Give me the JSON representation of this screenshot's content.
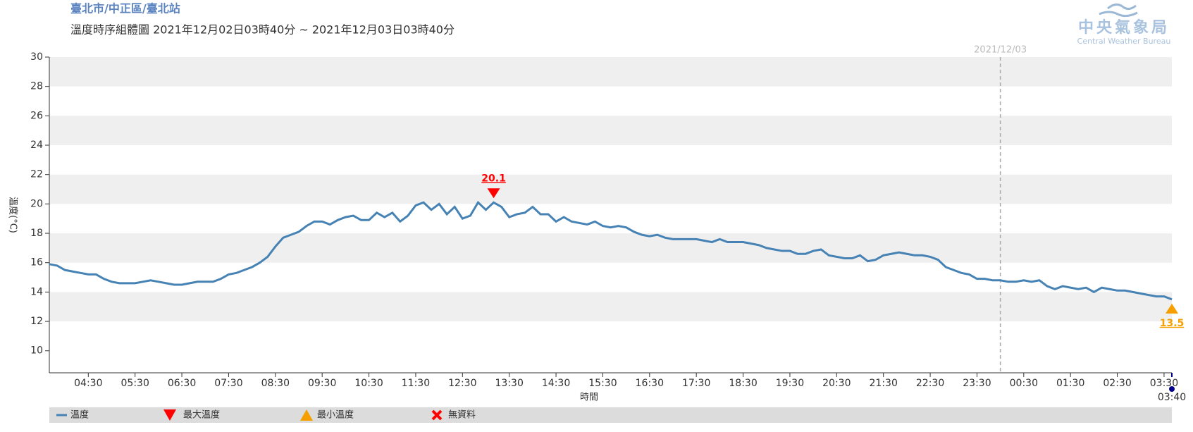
{
  "chart_data": {
    "type": "line",
    "location": "臺北市/中正區/臺北站",
    "title": "溫度時序組體圖 2021年12月02日03時40分 ~ 2021年12月03日03時40分",
    "logo_title": "中央氣象局",
    "logo_subtitle": "Central Weather Bureau",
    "ylabel": "溫度(°C)",
    "xlabel": "時間",
    "ylim": [
      8.5,
      30
    ],
    "yticks": [
      10,
      12,
      14,
      16,
      18,
      20,
      22,
      24,
      26,
      28,
      30
    ],
    "bands": true,
    "xlim": [
      "2021-12-02T03:40",
      "2021-12-03T03:40"
    ],
    "xticks": [
      {
        "value": "2021-12-02T04:30",
        "label": "04:30"
      },
      {
        "value": "2021-12-02T05:30",
        "label": "05:30"
      },
      {
        "value": "2021-12-02T06:30",
        "label": "06:30"
      },
      {
        "value": "2021-12-02T07:30",
        "label": "07:30"
      },
      {
        "value": "2021-12-02T08:30",
        "label": "08:30"
      },
      {
        "value": "2021-12-02T09:30",
        "label": "09:30"
      },
      {
        "value": "2021-12-02T10:30",
        "label": "10:30"
      },
      {
        "value": "2021-12-02T11:30",
        "label": "11:30"
      },
      {
        "value": "2021-12-02T12:30",
        "label": "12:30"
      },
      {
        "value": "2021-12-02T13:30",
        "label": "13:30"
      },
      {
        "value": "2021-12-02T14:30",
        "label": "14:30"
      },
      {
        "value": "2021-12-02T15:30",
        "label": "15:30"
      },
      {
        "value": "2021-12-02T16:30",
        "label": "16:30"
      },
      {
        "value": "2021-12-02T17:30",
        "label": "17:30"
      },
      {
        "value": "2021-12-02T18:30",
        "label": "18:30"
      },
      {
        "value": "2021-12-02T19:30",
        "label": "19:30"
      },
      {
        "value": "2021-12-02T20:30",
        "label": "20:30"
      },
      {
        "value": "2021-12-02T21:30",
        "label": "21:30"
      },
      {
        "value": "2021-12-02T22:30",
        "label": "22:30"
      },
      {
        "value": "2021-12-02T23:30",
        "label": "23:30"
      },
      {
        "value": "2021-12-03T00:30",
        "label": "00:30"
      },
      {
        "value": "2021-12-03T01:30",
        "label": "01:30"
      },
      {
        "value": "2021-12-03T02:30",
        "label": "02:30"
      },
      {
        "value": "2021-12-03T03:30",
        "label": "03:30"
      },
      {
        "value": "2021-12-03T03:40",
        "label": "03:40"
      }
    ],
    "day_line": {
      "x": "2021-12-03T00:00",
      "label": "2021/12/03"
    },
    "x": [
      "2021-12-02T03:40",
      "2021-12-02T03:50",
      "2021-12-02T04:00",
      "2021-12-02T04:10",
      "2021-12-02T04:20",
      "2021-12-02T04:30",
      "2021-12-02T04:40",
      "2021-12-02T04:50",
      "2021-12-02T05:00",
      "2021-12-02T05:10",
      "2021-12-02T05:20",
      "2021-12-02T05:30",
      "2021-12-02T05:40",
      "2021-12-02T05:50",
      "2021-12-02T06:00",
      "2021-12-02T06:10",
      "2021-12-02T06:20",
      "2021-12-02T06:30",
      "2021-12-02T06:40",
      "2021-12-02T06:50",
      "2021-12-02T07:00",
      "2021-12-02T07:10",
      "2021-12-02T07:20",
      "2021-12-02T07:30",
      "2021-12-02T07:40",
      "2021-12-02T07:50",
      "2021-12-02T08:00",
      "2021-12-02T08:10",
      "2021-12-02T08:20",
      "2021-12-02T08:30",
      "2021-12-02T08:40",
      "2021-12-02T08:50",
      "2021-12-02T09:00",
      "2021-12-02T09:10",
      "2021-12-02T09:20",
      "2021-12-02T09:30",
      "2021-12-02T09:40",
      "2021-12-02T09:50",
      "2021-12-02T10:00",
      "2021-12-02T10:10",
      "2021-12-02T10:20",
      "2021-12-02T10:30",
      "2021-12-02T10:40",
      "2021-12-02T10:50",
      "2021-12-02T11:00",
      "2021-12-02T11:10",
      "2021-12-02T11:20",
      "2021-12-02T11:30",
      "2021-12-02T11:40",
      "2021-12-02T11:50",
      "2021-12-02T12:00",
      "2021-12-02T12:10",
      "2021-12-02T12:20",
      "2021-12-02T12:30",
      "2021-12-02T12:40",
      "2021-12-02T12:50",
      "2021-12-02T13:00",
      "2021-12-02T13:10",
      "2021-12-02T13:20",
      "2021-12-02T13:30",
      "2021-12-02T13:40",
      "2021-12-02T13:50",
      "2021-12-02T14:00",
      "2021-12-02T14:10",
      "2021-12-02T14:20",
      "2021-12-02T14:30",
      "2021-12-02T14:40",
      "2021-12-02T14:50",
      "2021-12-02T15:00",
      "2021-12-02T15:10",
      "2021-12-02T15:20",
      "2021-12-02T15:30",
      "2021-12-02T15:40",
      "2021-12-02T15:50",
      "2021-12-02T16:00",
      "2021-12-02T16:10",
      "2021-12-02T16:20",
      "2021-12-02T16:30",
      "2021-12-02T16:40",
      "2021-12-02T16:50",
      "2021-12-02T17:00",
      "2021-12-02T17:10",
      "2021-12-02T17:20",
      "2021-12-02T17:30",
      "2021-12-02T17:40",
      "2021-12-02T17:50",
      "2021-12-02T18:00",
      "2021-12-02T18:10",
      "2021-12-02T18:20",
      "2021-12-02T18:30",
      "2021-12-02T18:40",
      "2021-12-02T18:50",
      "2021-12-02T19:00",
      "2021-12-02T19:10",
      "2021-12-02T19:20",
      "2021-12-02T19:30",
      "2021-12-02T19:40",
      "2021-12-02T19:50",
      "2021-12-02T20:00",
      "2021-12-02T20:10",
      "2021-12-02T20:20",
      "2021-12-02T20:30",
      "2021-12-02T20:40",
      "2021-12-02T20:50",
      "2021-12-02T21:00",
      "2021-12-02T21:10",
      "2021-12-02T21:20",
      "2021-12-02T21:30",
      "2021-12-02T21:40",
      "2021-12-02T21:50",
      "2021-12-02T22:00",
      "2021-12-02T22:10",
      "2021-12-02T22:20",
      "2021-12-02T22:30",
      "2021-12-02T22:40",
      "2021-12-02T22:50",
      "2021-12-02T23:00",
      "2021-12-02T23:10",
      "2021-12-02T23:20",
      "2021-12-02T23:30",
      "2021-12-02T23:40",
      "2021-12-02T23:50",
      "2021-12-03T00:00",
      "2021-12-03T00:10",
      "2021-12-03T00:20",
      "2021-12-03T00:30",
      "2021-12-03T00:40",
      "2021-12-03T00:50",
      "2021-12-03T01:00",
      "2021-12-03T01:10",
      "2021-12-03T01:20",
      "2021-12-03T01:30",
      "2021-12-03T01:40",
      "2021-12-03T01:50",
      "2021-12-03T02:00",
      "2021-12-03T02:10",
      "2021-12-03T02:20",
      "2021-12-03T02:30",
      "2021-12-03T02:40",
      "2021-12-03T02:50",
      "2021-12-03T03:00",
      "2021-12-03T03:10",
      "2021-12-03T03:20",
      "2021-12-03T03:30",
      "2021-12-03T03:40"
    ],
    "series": [
      {
        "name": "溫度",
        "color": "#4682b4",
        "values": [
          15.9,
          15.8,
          15.5,
          15.4,
          15.3,
          15.2,
          15.2,
          14.9,
          14.7,
          14.6,
          14.6,
          14.6,
          14.7,
          14.8,
          14.7,
          14.6,
          14.5,
          14.5,
          14.6,
          14.7,
          14.7,
          14.7,
          14.9,
          15.2,
          15.3,
          15.5,
          15.7,
          16.0,
          16.4,
          17.1,
          17.7,
          17.9,
          18.1,
          18.5,
          18.8,
          18.8,
          18.6,
          18.9,
          19.1,
          19.2,
          18.9,
          18.9,
          19.4,
          19.1,
          19.4,
          18.8,
          19.2,
          19.9,
          20.1,
          19.6,
          20.0,
          19.3,
          19.8,
          19.0,
          19.2,
          20.1,
          19.6,
          20.1,
          19.8,
          19.1,
          19.3,
          19.4,
          19.8,
          19.3,
          19.3,
          18.8,
          19.1,
          18.8,
          18.7,
          18.6,
          18.8,
          18.5,
          18.4,
          18.5,
          18.4,
          18.1,
          17.9,
          17.8,
          17.9,
          17.7,
          17.6,
          17.6,
          17.6,
          17.6,
          17.5,
          17.4,
          17.6,
          17.4,
          17.4,
          17.4,
          17.3,
          17.2,
          17.0,
          16.9,
          16.8,
          16.8,
          16.6,
          16.6,
          16.8,
          16.9,
          16.5,
          16.4,
          16.3,
          16.3,
          16.5,
          16.1,
          16.2,
          16.5,
          16.6,
          16.7,
          16.6,
          16.5,
          16.5,
          16.4,
          16.2,
          15.7,
          15.5,
          15.3,
          15.2,
          14.9,
          14.9,
          14.8,
          14.8,
          14.7,
          14.7,
          14.8,
          14.7,
          14.8,
          14.4,
          14.2,
          14.4,
          14.3,
          14.2,
          14.3,
          14.0,
          14.3,
          14.2,
          14.1,
          14.1,
          14.0,
          13.9,
          13.8,
          13.7,
          13.7,
          13.5
        ]
      }
    ],
    "max_marker": {
      "name": "最大溫度",
      "color": "#ff0000",
      "x": "2021-12-02T13:10",
      "value": 20.1
    },
    "min_marker": {
      "name": "最小溫度",
      "color": "#f5a000",
      "x": "2021-12-03T03:40",
      "value": 13.5
    },
    "nodata_legend": {
      "name": "無資料",
      "color": "#ff0000"
    }
  }
}
